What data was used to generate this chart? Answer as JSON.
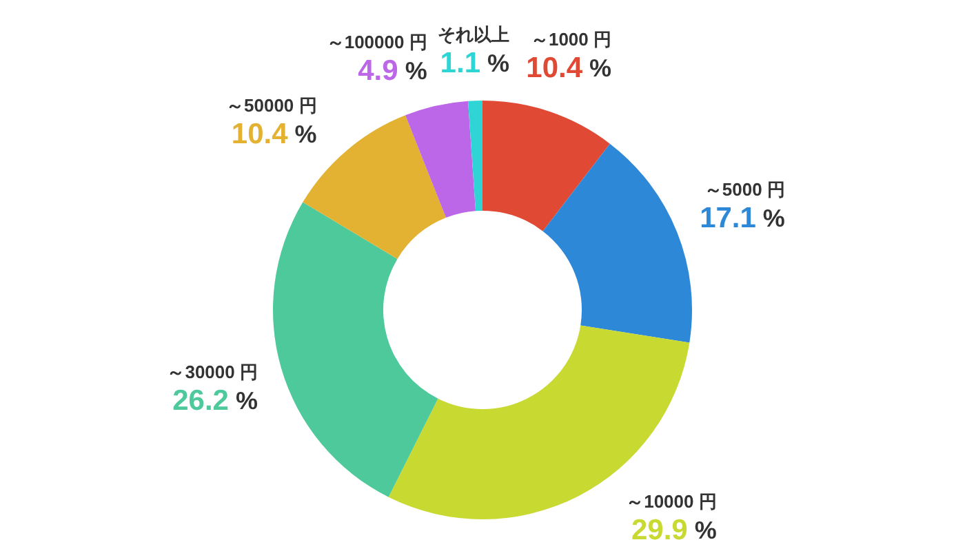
{
  "chart_data": {
    "type": "donut",
    "categories": [
      "～1000 円",
      "～5000 円",
      "～10000 円",
      "～30000 円",
      "～50000 円",
      "～100000 円",
      "それ以上"
    ],
    "values": [
      10.4,
      17.1,
      29.9,
      26.2,
      10.4,
      4.9,
      1.1
    ],
    "colors": [
      "#e04a35",
      "#2e88d8",
      "#c8d932",
      "#4ec99b",
      "#e4b233",
      "#bb67e8",
      "#2fd5d5"
    ],
    "value_labels": [
      "10.4 %",
      "17.1 %",
      "29.9 %",
      "26.2 %",
      "10.4 %",
      "4.9 %",
      "1.1 %"
    ]
  }
}
